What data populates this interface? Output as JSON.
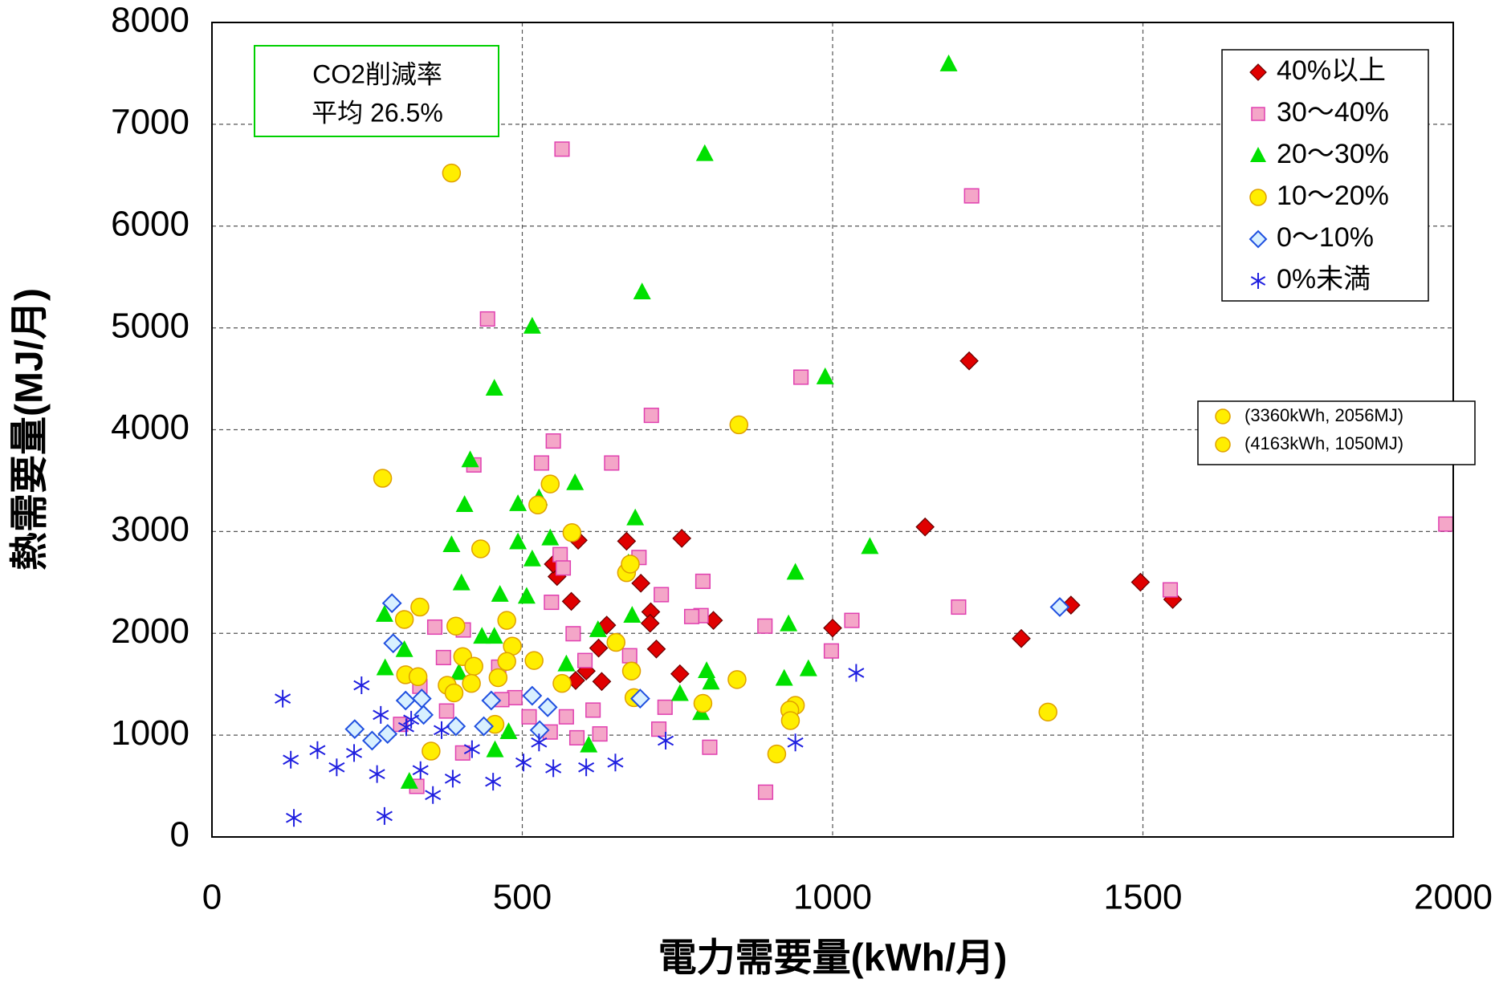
{
  "chart_data": {
    "type": "scatter",
    "xlabel": "電力需要量(kWh/月)",
    "ylabel": "熱需要量(MJ/月)",
    "xlim": [
      0,
      2000
    ],
    "xticks": [
      0,
      500,
      1000,
      1500,
      2000
    ],
    "ylim": [
      0,
      8000
    ],
    "yticks": [
      0,
      1000,
      2000,
      3000,
      4000,
      5000,
      6000,
      7000,
      8000
    ],
    "grid": true,
    "legend": "upper right",
    "annotation": [
      "CO2削減率",
      "平均 26.5%"
    ],
    "outliers": {
      "color": "#ffee00",
      "labels": [
        "(3360kWh,  2056MJ)",
        "(4163kWh,  1050MJ)"
      ]
    },
    "series": [
      {
        "name": "40%以上",
        "color": "#e00000",
        "marker": "diamond",
        "x": [
          1220,
          1149,
          1496,
          1548,
          1384,
          1304,
          1000,
          808,
          757,
          668,
          590,
          556,
          550,
          579,
          691,
          707,
          706,
          716,
          754,
          636,
          623,
          603,
          628,
          586
        ],
        "values": [
          4676,
          3045,
          2502,
          2333,
          2277,
          1949,
          2052,
          2127,
          2933,
          2905,
          2914,
          2558,
          2680,
          2314,
          2492,
          2211,
          2099,
          1846,
          1602,
          2080,
          1855,
          1630,
          1527,
          1537
        ]
      },
      {
        "name": "30～40%",
        "color": "#f4a6c8",
        "marker": "square",
        "x": [
          564,
          1224,
          444,
          949,
          708,
          550,
          644,
          531,
          1988,
          1544,
          1203,
          1031,
          998,
          891,
          791,
          788,
          773,
          688,
          724,
          561,
          566,
          547,
          582,
          601,
          614,
          571,
          545,
          588,
          625,
          720,
          730,
          802,
          892,
          422,
          359,
          405,
          373,
          335,
          378,
          462,
          488,
          304,
          404,
          467,
          673,
          511,
          330
        ],
        "values": [
          6756,
          6297,
          5088,
          4516,
          4141,
          3889,
          3673,
          3673,
          3073,
          2427,
          2258,
          2127,
          1827,
          2071,
          2511,
          2174,
          2165,
          2745,
          2380,
          2773,
          2642,
          2305,
          1996,
          1733,
          1246,
          1180,
          1031,
          974,
          1012,
          1059,
          1274,
          881,
          440,
          3654,
          2061,
          2033,
          1762,
          1480,
          1237,
          1668,
          1368,
          1106,
          825,
          1349,
          1780,
          1180,
          497
        ]
      },
      {
        "name": "20～30%",
        "color": "#00e000",
        "marker": "triangle",
        "x": [
          1187,
          794,
          693,
          516,
          988,
          455,
          416,
          407,
          585,
          527,
          493,
          386,
          682,
          1060,
          940,
          516,
          545,
          493,
          402,
          464,
          507,
          671,
          677,
          622,
          929,
          961,
          797,
          804,
          922,
          754,
          788,
          571,
          607,
          278,
          310,
          279,
          398,
          435,
          455,
          478,
          456,
          318
        ],
        "values": [
          7590,
          6709,
          5350,
          5013,
          4516,
          4404,
          3701,
          3261,
          3476,
          3327,
          3270,
          2867,
          3130,
          2849,
          2596,
          2727,
          2933,
          2895,
          2492,
          2380,
          2361,
          2689,
          2174,
          2033,
          2090,
          1649,
          1630,
          1518,
          1555,
          1405,
          1218,
          1696,
          900,
          2183,
          1837,
          1658,
          1612,
          1968,
          1968,
          1031,
          853,
          543
        ]
      },
      {
        "name": "10～20%",
        "color": "#ffee00",
        "marker": "circle",
        "x": [
          386,
          275,
          849,
          433,
          545,
          580,
          525,
          668,
          674,
          335,
          310,
          393,
          475,
          404,
          422,
          484,
          519,
          651,
          676,
          680,
          312,
          332,
          379,
          418,
          461,
          475,
          564,
          390,
          846,
          791,
          940,
          931,
          932,
          910,
          1347,
          456,
          353
        ],
        "values": [
          6521,
          3523,
          4048,
          2830,
          3467,
          2989,
          3261,
          2596,
          2680,
          2258,
          2136,
          2071,
          2127,
          1771,
          1677,
          1874,
          1733,
          1911,
          1630,
          1368,
          1593,
          1574,
          1490,
          1508,
          1565,
          1724,
          1508,
          1415,
          1546,
          1312,
          1293,
          1246,
          1143,
          815,
          1227,
          1106,
          843
        ]
      },
      {
        "name": "0～10%",
        "color": "#2050e0",
        "marker": "diamond-open",
        "x": [
          290,
          292,
          1366,
          516,
          450,
          541,
          690,
          230,
          258,
          283,
          312,
          338,
          341,
          393,
          438,
          528
        ],
        "values": [
          2296,
          1902,
          2258,
          1387,
          1340,
          1274,
          1359,
          1059,
          946,
          1012,
          1340,
          1359,
          1199,
          1087,
          1087,
          1049
        ]
      },
      {
        "name": "0%未満",
        "color": "#2020e0",
        "marker": "star",
        "x": [
          114,
          241,
          1038,
          940,
          127,
          170,
          201,
          229,
          266,
          132,
          278,
          272,
          313,
          336,
          356,
          370,
          388,
          419,
          453,
          502,
          550,
          603,
          650,
          731,
          527,
          321
        ],
        "values": [
          1359,
          1490,
          1612,
          928,
          759,
          853,
          684,
          825,
          618,
          187,
          206,
          1199,
          1078,
          656,
          412,
          1049,
          572,
          862,
          543,
          731,
          675,
          684,
          731,
          946,
          928,
          1152
        ]
      }
    ]
  }
}
